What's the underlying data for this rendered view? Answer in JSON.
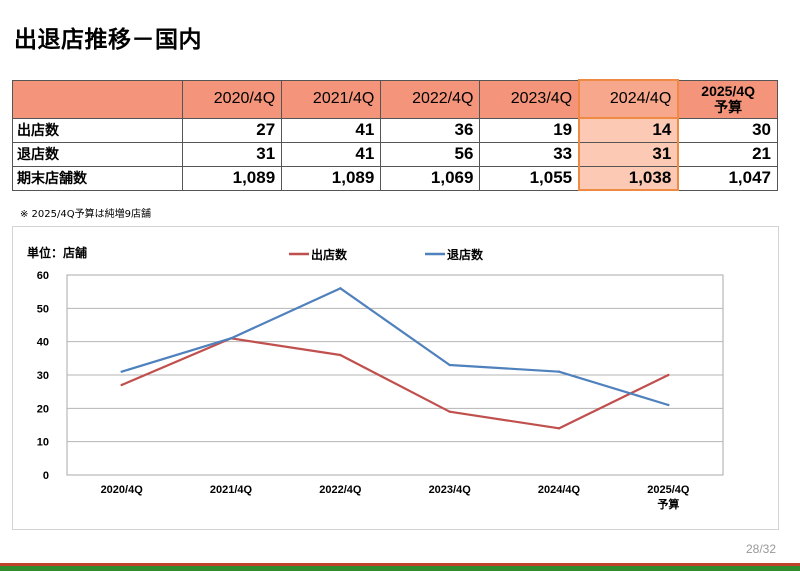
{
  "page": {
    "title": "出退店推移－国内",
    "note": "※ 2025/4Q予算は純増9店舗",
    "page_number": "28/32"
  },
  "table": {
    "headers": [
      "2020/4Q",
      "2021/4Q",
      "2022/4Q",
      "2023/4Q",
      "2024/4Q"
    ],
    "last_header": [
      "2025/4Q",
      "予算"
    ],
    "rows": [
      {
        "label": "出店数",
        "values": [
          "27",
          "41",
          "36",
          "19",
          "14",
          "30"
        ]
      },
      {
        "label": "退店数",
        "values": [
          "31",
          "41",
          "56",
          "33",
          "31",
          "21"
        ]
      },
      {
        "label": "期末店舗数",
        "values": [
          "1,089",
          "1,089",
          "1,069",
          "1,055",
          "1,038",
          "1,047"
        ]
      }
    ],
    "highlight_color": "#f6a78c",
    "header_color": "#f4957b"
  },
  "chart_data": {
    "type": "line",
    "unit_label": "単位：店舗",
    "categories": [
      [
        "2020/4Q"
      ],
      [
        "2021/4Q"
      ],
      [
        "2022/4Q"
      ],
      [
        "2023/4Q"
      ],
      [
        "2024/4Q"
      ],
      [
        "2025/4Q",
        "予算"
      ]
    ],
    "series": [
      {
        "name": "出店数",
        "color": "#c0504d",
        "values": [
          27,
          41,
          36,
          19,
          14,
          30
        ]
      },
      {
        "name": "退店数",
        "color": "#4f81bd",
        "values": [
          31,
          41,
          56,
          33,
          31,
          21
        ]
      }
    ],
    "ylim": [
      0,
      60
    ],
    "yticks": [
      0,
      10,
      20,
      30,
      40,
      50,
      60
    ],
    "grid": true,
    "legend_position": "top"
  }
}
